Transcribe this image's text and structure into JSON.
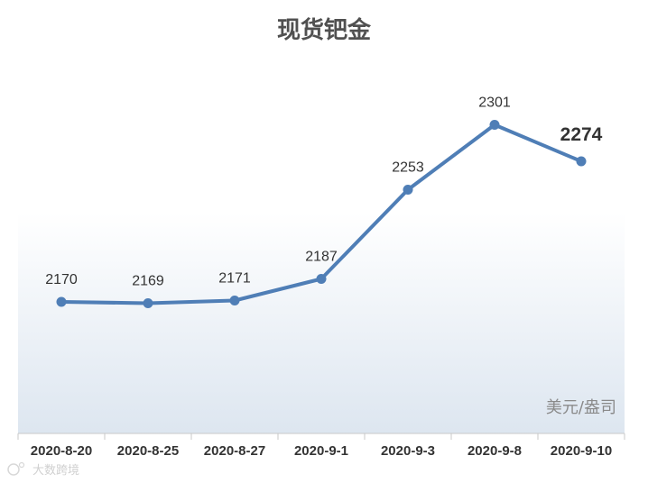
{
  "chart_data": {
    "type": "line",
    "title": "现货钯金",
    "unit_label": "美元/盎司",
    "categories": [
      "2020-8-20",
      "2020-8-25",
      "2020-8-27",
      "2020-9-1",
      "2020-9-3",
      "2020-9-8",
      "2020-9-10"
    ],
    "values": [
      2170,
      2169,
      2171,
      2187,
      2253,
      2301,
      2274
    ],
    "data_labels": [
      "2170",
      "2169",
      "2171",
      "2187",
      "2253",
      "2301",
      "2274"
    ],
    "ylim": [
      2100,
      2340
    ],
    "grid": false,
    "legend": "none",
    "line_color": "#4f7eb6",
    "background_gradient": [
      "#ffffff",
      "#dde6f0"
    ]
  },
  "watermark": {
    "text": "大数跨境"
  }
}
